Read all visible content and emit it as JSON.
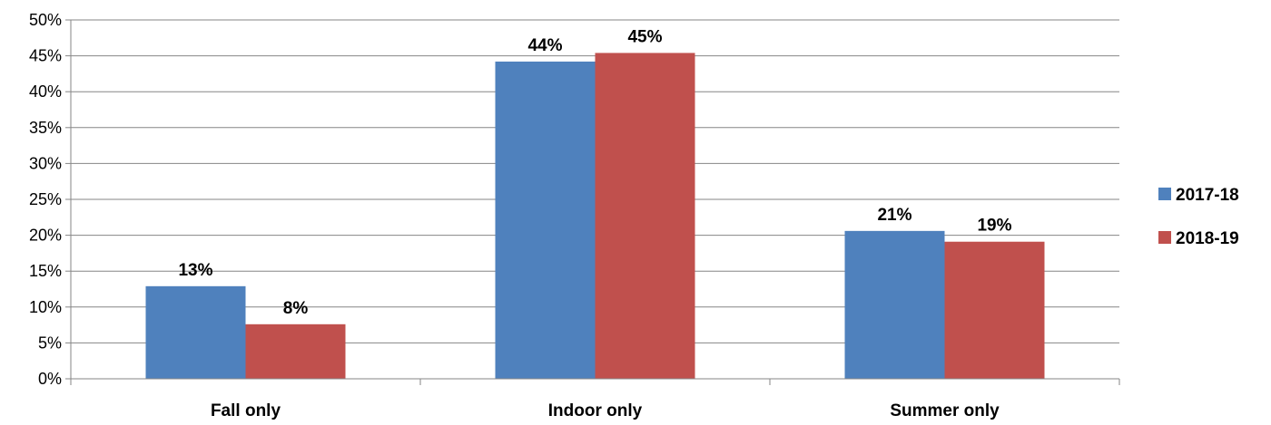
{
  "chart_data": {
    "type": "bar",
    "categories": [
      "Fall only",
      "Indoor only",
      "Summer only"
    ],
    "series": [
      {
        "name": "2017-18",
        "values": [
          12.9,
          44.2,
          20.6
        ],
        "labels": [
          "13%",
          "44%",
          "21%"
        ],
        "color": "#4F81BD"
      },
      {
        "name": "2018-19",
        "values": [
          7.6,
          45.4,
          19.1
        ],
        "labels": [
          "8%",
          "45%",
          "19%"
        ],
        "color": "#C0504D"
      }
    ],
    "ylim": [
      0,
      50
    ],
    "yticks": [
      "0%",
      "5%",
      "10%",
      "15%",
      "20%",
      "25%",
      "30%",
      "35%",
      "40%",
      "45%",
      "50%"
    ],
    "grid": true,
    "legend_position": "right"
  }
}
